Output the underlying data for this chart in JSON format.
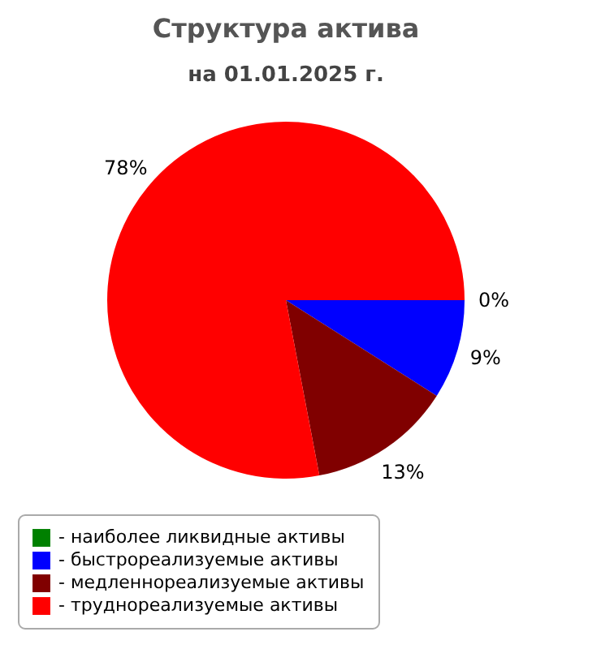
{
  "chart_data": {
    "type": "pie",
    "title": "Структура актива",
    "subtitle": "на 01.01.2025 г.",
    "categories": [
      "- наиболее ликвидные активы",
      "- быстрореализуемые активы",
      "- медленнореализуемые активы",
      "- труднореализуемые активы"
    ],
    "values": [
      0,
      9,
      13,
      78
    ],
    "colors": [
      "#008000",
      "#0000ff",
      "#800000",
      "#ff0000"
    ],
    "value_labels": [
      "0%",
      "9%",
      "13%",
      "78%"
    ],
    "legend": "bottom"
  }
}
